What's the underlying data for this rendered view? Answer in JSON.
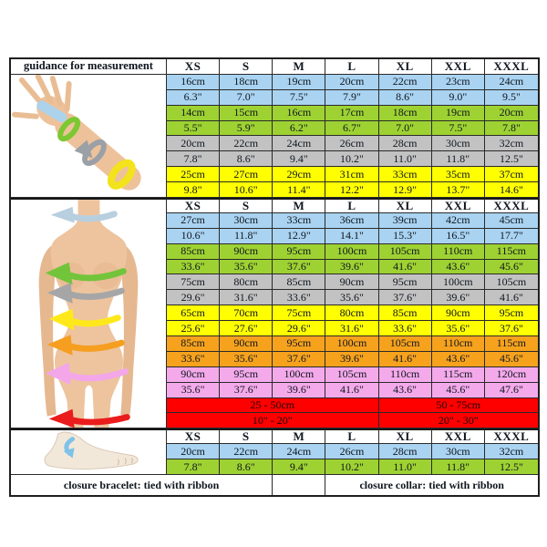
{
  "table": {
    "title": "guidance for measurement",
    "size_headers": [
      "XS",
      "S",
      "M",
      "L",
      "XL",
      "XXL",
      "XXXL"
    ],
    "colors": {
      "blue": "#a9d3f1",
      "green": "#9ed232",
      "gray": "#c2c2c2",
      "yellow": "#ffff00",
      "orange": "#f6a21d",
      "pink": "#f4aaea",
      "red": "#ff0000"
    },
    "figures": [
      {
        "id": "arm",
        "description": "arm and hand with blue, green, gray and yellow measurement bands"
      },
      {
        "id": "torso",
        "description": "female torso with neck, bust, underbust, waist, belly, hip and thigh measurement arrows"
      },
      {
        "id": "foot",
        "description": "foot with blue ankle measurement arrow"
      }
    ],
    "sections": [
      {
        "id": "wrist_arm",
        "rows": [
          {
            "color": "blue",
            "values": [
              "16cm",
              "18cm",
              "19cm",
              "20cm",
              "22cm",
              "23cm",
              "24cm"
            ]
          },
          {
            "color": "blue",
            "values": [
              "6.3\"",
              "7.0\"",
              "7.5\"",
              "7.9\"",
              "8.6\"",
              "9.0\"",
              "9.5\""
            ]
          },
          {
            "color": "green",
            "values": [
              "14cm",
              "15cm",
              "16cm",
              "17cm",
              "18cm",
              "19cm",
              "20cm"
            ]
          },
          {
            "color": "green",
            "values": [
              "5.5\"",
              "5.9\"",
              "6.2\"",
              "6.7\"",
              "7.0\"",
              "7.5\"",
              "7.8\""
            ]
          },
          {
            "color": "gray",
            "values": [
              "20cm",
              "22cm",
              "24cm",
              "26cm",
              "28cm",
              "30cm",
              "32cm"
            ]
          },
          {
            "color": "gray",
            "values": [
              "7.8\"",
              "8.6\"",
              "9.4\"",
              "10.2\"",
              "11.0\"",
              "11.8\"",
              "12.5\""
            ]
          },
          {
            "color": "yellow",
            "values": [
              "25cm",
              "27cm",
              "29cm",
              "31cm",
              "33cm",
              "35cm",
              "37cm"
            ]
          },
          {
            "color": "yellow",
            "values": [
              "9.8\"",
              "10.6\"",
              "11.4\"",
              "12.2\"",
              "12.9\"",
              "13.7\"",
              "14.6\""
            ]
          }
        ]
      },
      {
        "id": "body",
        "rows": [
          {
            "color": "blue",
            "values": [
              "27cm",
              "30cm",
              "33cm",
              "36cm",
              "39cm",
              "42cm",
              "45cm"
            ]
          },
          {
            "color": "blue",
            "values": [
              "10.6\"",
              "11.8\"",
              "12.9\"",
              "14.1\"",
              "15.3\"",
              "16.5\"",
              "17.7\""
            ]
          },
          {
            "color": "green",
            "values": [
              "85cm",
              "90cm",
              "95cm",
              "100cm",
              "105cm",
              "110cm",
              "115cm"
            ]
          },
          {
            "color": "green",
            "values": [
              "33.6\"",
              "35.6\"",
              "37.6\"",
              "39.6\"",
              "41.6\"",
              "43.6\"",
              "45.6\""
            ]
          },
          {
            "color": "gray",
            "values": [
              "75cm",
              "80cm",
              "85cm",
              "90cm",
              "95cm",
              "100cm",
              "105cm"
            ]
          },
          {
            "color": "gray",
            "values": [
              "29.6\"",
              "31.6\"",
              "33.6\"",
              "35.6\"",
              "37.6\"",
              "39.6\"",
              "41.6\""
            ]
          },
          {
            "color": "yellow",
            "values": [
              "65cm",
              "70cm",
              "75cm",
              "80cm",
              "85cm",
              "90cm",
              "95cm"
            ]
          },
          {
            "color": "yellow",
            "values": [
              "25.6\"",
              "27.6\"",
              "29.6\"",
              "31.6\"",
              "33.6\"",
              "35.6\"",
              "37.6\""
            ]
          },
          {
            "color": "orange",
            "values": [
              "85cm",
              "90cm",
              "95cm",
              "100cm",
              "105cm",
              "110cm",
              "115cm"
            ]
          },
          {
            "color": "orange",
            "values": [
              "33.6\"",
              "35.6\"",
              "37.6\"",
              "39.6\"",
              "41.6\"",
              "43.6\"",
              "45.6\""
            ]
          },
          {
            "color": "pink",
            "values": [
              "90cm",
              "95cm",
              "100cm",
              "105cm",
              "110cm",
              "115cm",
              "120cm"
            ]
          },
          {
            "color": "pink",
            "values": [
              "35.6\"",
              "37.6\"",
              "39.6\"",
              "41.6\"",
              "43.6\"",
              "45.6\"",
              "47.6\""
            ]
          }
        ],
        "range_rows": [
          {
            "color": "red",
            "left": "25 - 50cm",
            "right": "50 - 75cm"
          },
          {
            "color": "red",
            "left": "10\" - 20\"",
            "right": "20\" - 30\""
          }
        ]
      },
      {
        "id": "ankle",
        "rows": [
          {
            "color": "blue",
            "values": [
              "20cm",
              "22cm",
              "24cm",
              "26cm",
              "28cm",
              "30cm",
              "32cm"
            ]
          },
          {
            "color": "green",
            "values": [
              "7.8\"",
              "8.6\"",
              "9.4\"",
              "10.2\"",
              "11.0\"",
              "11.8\"",
              "12.5\""
            ]
          }
        ]
      }
    ],
    "footer": {
      "left": "closure bracelet: tied with ribbon",
      "middle": "",
      "right": "closure collar: tied with ribbon"
    }
  }
}
